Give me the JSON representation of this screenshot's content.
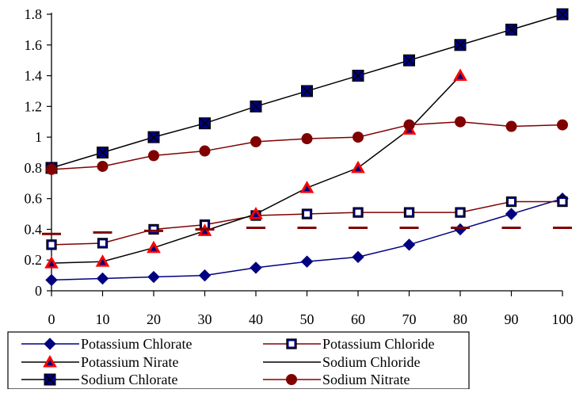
{
  "chart_data": {
    "type": "line",
    "title": "",
    "xlabel": "",
    "ylabel": "",
    "x": [
      0,
      10,
      20,
      30,
      40,
      50,
      60,
      70,
      80,
      90,
      100
    ],
    "ylim": [
      0,
      1.8
    ],
    "y_ticks": [
      "0",
      "0.2",
      "0.4",
      "0.6",
      "0.8",
      "1",
      "1.2",
      "1.4",
      "1.6",
      "1.8"
    ],
    "x_ticks": [
      "0",
      "10",
      "20",
      "30",
      "40",
      "50",
      "60",
      "70",
      "80",
      "90",
      "100"
    ],
    "grid": false,
    "legend_position": "bottom",
    "series": [
      {
        "name": "Potassium Chlorate",
        "marker": "diamond",
        "color": "#000080",
        "line_color": "#000080",
        "values": [
          0.07,
          0.08,
          0.09,
          0.1,
          0.15,
          0.19,
          0.22,
          0.3,
          0.4,
          0.5,
          0.6
        ]
      },
      {
        "name": "Potassium Chloride",
        "marker": "square-open",
        "color": "#000080",
        "line_color": "#800000",
        "values": [
          0.3,
          0.31,
          0.4,
          0.43,
          0.49,
          0.5,
          0.51,
          0.51,
          0.51,
          0.58,
          0.58
        ]
      },
      {
        "name": "Potassium Nirate",
        "marker": "triangle",
        "color": "#ff0000",
        "line_color": "#000000",
        "values": [
          0.18,
          0.19,
          0.28,
          0.39,
          0.5,
          0.67,
          0.8,
          1.05,
          1.4,
          null,
          null
        ]
      },
      {
        "name": "Sodium Chloride",
        "marker": "dash",
        "color": "#800000",
        "line_color": "#000000",
        "values": [
          0.37,
          0.38,
          0.39,
          0.4,
          0.41,
          0.41,
          0.41,
          0.41,
          0.41,
          0.41,
          0.41
        ]
      },
      {
        "name": "Sodium Chlorate",
        "marker": "square-x",
        "color": "#000080",
        "line_color": "#000000",
        "values": [
          0.8,
          0.9,
          1.0,
          1.09,
          1.2,
          1.3,
          1.4,
          1.5,
          1.6,
          1.7,
          1.8
        ]
      },
      {
        "name": "Sodium Nitrate",
        "marker": "circle",
        "color": "#800000",
        "line_color": "#800000",
        "values": [
          0.79,
          0.81,
          0.88,
          0.91,
          0.97,
          0.99,
          1.0,
          1.08,
          1.1,
          1.07,
          1.08
        ]
      }
    ]
  }
}
